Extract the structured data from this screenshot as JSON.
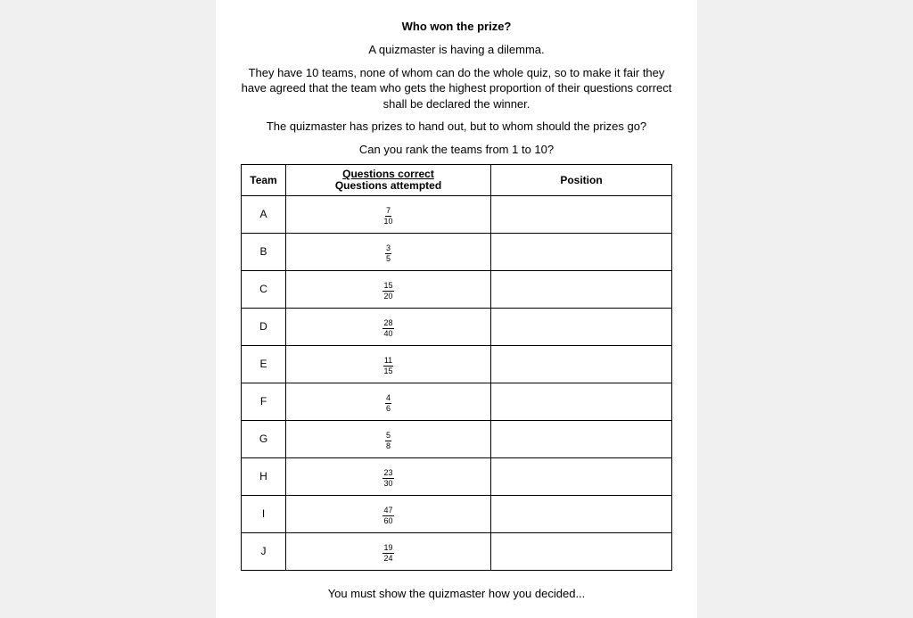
{
  "title": "Who won the prize?",
  "intro": [
    "A quizmaster is having a dilemma.",
    "They have 10 teams, none of whom can do the whole quiz, so to make it fair they have agreed that the team who gets the highest proportion of their questions correct shall be declared the winner.",
    "The quizmaster has prizes to hand out, but to whom should the prizes go?",
    "Can you rank the teams from 1 to 10?"
  ],
  "table": {
    "col1_header": "Team",
    "col2_header_top": "Questions correct",
    "col2_header_bottom": "Questions attempted",
    "col3_header": "Position",
    "rows": [
      {
        "team": "A",
        "num": "7",
        "den": "10"
      },
      {
        "team": "B",
        "num": "3",
        "den": "5"
      },
      {
        "team": "C",
        "num": "15",
        "den": "20"
      },
      {
        "team": "D",
        "num": "28",
        "den": "40"
      },
      {
        "team": "E",
        "num": "11",
        "den": "15"
      },
      {
        "team": "F",
        "num": "4",
        "den": "6"
      },
      {
        "team": "G",
        "num": "5",
        "den": "8"
      },
      {
        "team": "H",
        "num": "23",
        "den": "30"
      },
      {
        "team": "I",
        "num": "47",
        "den": "60"
      },
      {
        "team": "J",
        "num": "19",
        "den": "24"
      }
    ]
  },
  "footer": "You must show the quizmaster how you decided...",
  "colors": {
    "page_bg": "#ffffff",
    "body_bg": "#f0f0f0",
    "text": "#000000",
    "border": "#000000"
  }
}
